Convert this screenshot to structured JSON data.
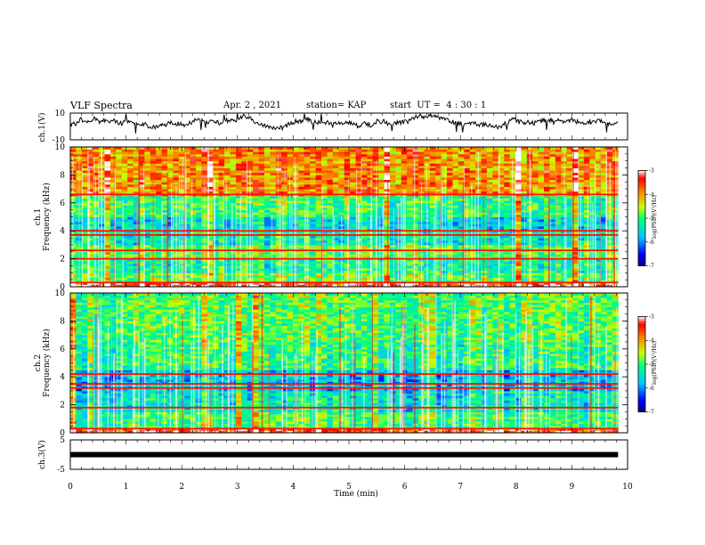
{
  "header": {
    "title": "VLF Spectra",
    "date": "Apr. 2 , 2021",
    "station": "station= KAP",
    "start": "start  UT =  4 : 30 : 1"
  },
  "chart_data": [
    {
      "type": "line",
      "panel": "ch1-waveform",
      "ylabel": "ch.1(V)",
      "ylim": [
        -10,
        10
      ],
      "yticks": [
        "10",
        "-10"
      ],
      "xlim": [
        0,
        10
      ],
      "x_data_end": 9.83,
      "description_values": {
        "mean": 3,
        "fluctuation": 3
      }
    },
    {
      "type": "heatmap",
      "panel": "ch1-spectrogram",
      "ylabel": "ch.1\nFrequency (kHz)",
      "ylim": [
        0,
        10
      ],
      "yticks": [
        "0",
        "2",
        "4",
        "6",
        "8",
        "10"
      ],
      "xlim": [
        0,
        10
      ],
      "x_data_end": 9.83,
      "zlim": [
        -7,
        -3
      ],
      "colorbar_label": "log(PSD)(V²/Hz)",
      "colorbar_ticks": [
        "-3",
        "-4",
        "-5",
        "-6",
        "-7"
      ],
      "bands": [
        {
          "from": 0,
          "to": 0.4,
          "level": -3.3
        },
        {
          "from": 0.4,
          "to": 1.0,
          "level": -4.8
        },
        {
          "from": 1.0,
          "to": 2.0,
          "level": -5.2
        },
        {
          "from": 2.0,
          "to": 3.0,
          "level": -4.8
        },
        {
          "from": 3.0,
          "to": 4.0,
          "level": -5.3
        },
        {
          "from": 4.0,
          "to": 5.0,
          "level": -5.5
        },
        {
          "from": 5.0,
          "to": 6.5,
          "level": -5.0
        },
        {
          "from": 6.5,
          "to": 10,
          "level": -3.9
        }
      ],
      "lines_khz": [
        0.3,
        2.0,
        2.6,
        3.7,
        4.0,
        6.6
      ]
    },
    {
      "type": "heatmap",
      "panel": "ch2-spectrogram",
      "ylabel": "ch.2\nFrequency (kHz)",
      "ylim": [
        0,
        10
      ],
      "yticks": [
        "0",
        "2",
        "4",
        "6",
        "8",
        "10"
      ],
      "xlim": [
        0,
        10
      ],
      "x_data_end": 9.83,
      "zlim": [
        -7,
        -3
      ],
      "colorbar_label": "log(PSD)(V²/Hz)",
      "colorbar_ticks": [
        "-3",
        "-4",
        "-5",
        "-6",
        "-7"
      ],
      "bands": [
        {
          "from": 0,
          "to": 0.3,
          "level": -3.5
        },
        {
          "from": 0.3,
          "to": 1.5,
          "level": -5.0
        },
        {
          "from": 1.5,
          "to": 3.0,
          "level": -5.4
        },
        {
          "from": 3.0,
          "to": 4.5,
          "level": -5.7
        },
        {
          "from": 4.5,
          "to": 6.5,
          "level": -5.1
        },
        {
          "from": 6.5,
          "to": 10,
          "level": -4.9
        }
      ],
      "lines_khz": [
        0.3,
        1.8,
        3.2,
        3.5,
        4.2
      ]
    },
    {
      "type": "line",
      "panel": "ch3-waveform",
      "ylabel": "ch.3(V)",
      "ylim": [
        -5,
        5
      ],
      "yticks": [
        "5",
        "0",
        "-5"
      ],
      "xlim": [
        0,
        10
      ],
      "x_data_end": 9.83,
      "value": 0
    }
  ],
  "xaxis": {
    "label": "Time  (min)",
    "ticks": [
      "0",
      "1",
      "2",
      "3",
      "4",
      "5",
      "6",
      "7",
      "8",
      "9",
      "10"
    ]
  },
  "colors": {
    "axis": "#000000",
    "trace": "#000000",
    "colormap": [
      "#000080",
      "#0000ff",
      "#00c8ff",
      "#00ff80",
      "#c8ff00",
      "#ff8000",
      "#ff0000",
      "#ffffff"
    ]
  }
}
